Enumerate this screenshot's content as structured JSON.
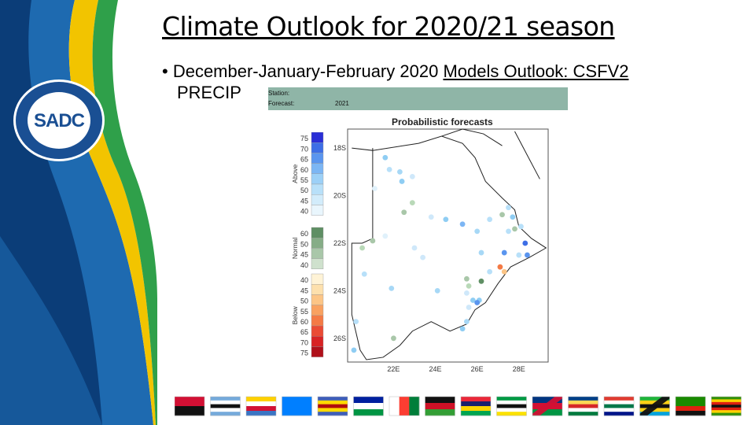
{
  "slide": {
    "title": "Climate Outlook for 2020/21 season",
    "bullet_prefix": "December-January-February 2020",
    "bullet_link": "Models Outlook: CSFV2",
    "bullet_line2": "PRECIP"
  },
  "logo": {
    "letters": "SADC",
    "ring_text": "SOUTHERN AFRICAN DEVELOPMENT COMMUNITY"
  },
  "forecast_header": {
    "station_label": "Station:",
    "forecast_label": "Forecast:",
    "forecast_value": "2021"
  },
  "forecast_title": "Probabilistic forecasts",
  "legend": {
    "above": {
      "label": "Above",
      "ticks": [
        "75",
        "70",
        "65",
        "60",
        "55",
        "50",
        "45",
        "40"
      ],
      "colors": [
        "#2a2fd6",
        "#3d6ee6",
        "#5a95ef",
        "#7cb6f4",
        "#9cd0f7",
        "#b8e0f9",
        "#d2ecfb",
        "#e9f6fd"
      ]
    },
    "normal": {
      "label": "Normal",
      "ticks": [
        "60",
        "50",
        "45",
        "40"
      ],
      "colors": [
        "#5f8f64",
        "#86ad87",
        "#a9c7a9",
        "#cfe1cd"
      ]
    },
    "below": {
      "label": "Below",
      "ticks": [
        "40",
        "45",
        "50",
        "55",
        "60",
        "65",
        "70",
        "75"
      ],
      "colors": [
        "#fff3d6",
        "#fde0ad",
        "#fcc586",
        "#f9a160",
        "#f47a45",
        "#ea4b34",
        "#d82324",
        "#b0101a"
      ]
    }
  },
  "map": {
    "lat_labels": [
      "18S",
      "20S",
      "22S",
      "24S",
      "26S"
    ],
    "lon_labels": [
      "22E",
      "24E",
      "26E",
      "28E"
    ],
    "stations": [
      {
        "lon": 21.6,
        "lat": -18.4,
        "c": "#8fcdf3"
      },
      {
        "lon": 21.8,
        "lat": -18.9,
        "c": "#b8e0f9"
      },
      {
        "lon": 22.3,
        "lat": -19.0,
        "c": "#a7d8f6"
      },
      {
        "lon": 22.4,
        "lat": -19.4,
        "c": "#8fcdf3"
      },
      {
        "lon": 22.9,
        "lat": -19.2,
        "c": "#cfe8fa"
      },
      {
        "lon": 21.1,
        "lat": -19.7,
        "c": "#e0f1fb"
      },
      {
        "lon": 22.9,
        "lat": -20.3,
        "c": "#b9d9b8"
      },
      {
        "lon": 22.5,
        "lat": -20.7,
        "c": "#a9c7a9"
      },
      {
        "lon": 23.8,
        "lat": -20.9,
        "c": "#cfe8fa"
      },
      {
        "lon": 24.5,
        "lat": -21.0,
        "c": "#8fcdf3"
      },
      {
        "lon": 25.3,
        "lat": -21.2,
        "c": "#7cb6f4"
      },
      {
        "lon": 26.6,
        "lat": -21.0,
        "c": "#b8e0f9"
      },
      {
        "lon": 27.2,
        "lat": -20.8,
        "c": "#a9c7a9"
      },
      {
        "lon": 27.5,
        "lat": -20.5,
        "c": "#b8e0f9"
      },
      {
        "lon": 27.7,
        "lat": -20.9,
        "c": "#8fcdf3"
      },
      {
        "lon": 27.8,
        "lat": -21.4,
        "c": "#a9c7a9"
      },
      {
        "lon": 28.1,
        "lat": -21.3,
        "c": "#b8e0f9"
      },
      {
        "lon": 26.0,
        "lat": -21.5,
        "c": "#a7d8f6"
      },
      {
        "lon": 21.0,
        "lat": -21.9,
        "c": "#a9c7a9"
      },
      {
        "lon": 20.5,
        "lat": -22.2,
        "c": "#b9d9b8"
      },
      {
        "lon": 21.6,
        "lat": -21.7,
        "c": "#e0f1fb"
      },
      {
        "lon": 23.0,
        "lat": -22.2,
        "c": "#cfe8fa"
      },
      {
        "lon": 23.4,
        "lat": -22.6,
        "c": "#cfe8fa"
      },
      {
        "lon": 26.2,
        "lat": -22.4,
        "c": "#a7d8f6"
      },
      {
        "lon": 27.3,
        "lat": -22.4,
        "c": "#5a95ef"
      },
      {
        "lon": 27.5,
        "lat": -21.5,
        "c": "#b8e0f9"
      },
      {
        "lon": 28.0,
        "lat": -22.5,
        "c": "#b8e0f9"
      },
      {
        "lon": 28.3,
        "lat": -22.0,
        "c": "#3d6ee6"
      },
      {
        "lon": 28.4,
        "lat": -22.5,
        "c": "#5a95ef"
      },
      {
        "lon": 27.1,
        "lat": -23.0,
        "c": "#f47a45"
      },
      {
        "lon": 27.3,
        "lat": -23.2,
        "c": "#fcc586"
      },
      {
        "lon": 26.6,
        "lat": -23.2,
        "c": "#b8e0f9"
      },
      {
        "lon": 26.2,
        "lat": -23.6,
        "c": "#5f8f64"
      },
      {
        "lon": 25.6,
        "lat": -23.8,
        "c": "#b9d9b8"
      },
      {
        "lon": 25.5,
        "lat": -23.5,
        "c": "#a9c7a9"
      },
      {
        "lon": 20.6,
        "lat": -23.3,
        "c": "#b8e0f9"
      },
      {
        "lon": 21.9,
        "lat": -23.9,
        "c": "#a7d8f6"
      },
      {
        "lon": 24.1,
        "lat": -24.0,
        "c": "#a7d8f6"
      },
      {
        "lon": 25.5,
        "lat": -24.1,
        "c": "#cfe8fa"
      },
      {
        "lon": 25.8,
        "lat": -24.4,
        "c": "#8fcdf3"
      },
      {
        "lon": 26.1,
        "lat": -24.4,
        "c": "#8fcdf3"
      },
      {
        "lon": 26.0,
        "lat": -24.5,
        "c": "#5a95ef"
      },
      {
        "lon": 25.6,
        "lat": -24.7,
        "c": "#cfe8fa"
      },
      {
        "lon": 25.5,
        "lat": -25.3,
        "c": "#a7d8f6"
      },
      {
        "lon": 25.3,
        "lat": -25.6,
        "c": "#8fcdf3"
      },
      {
        "lon": 20.2,
        "lat": -25.3,
        "c": "#b8e0f9"
      },
      {
        "lon": 22.0,
        "lat": -26.0,
        "c": "#a9c7a9"
      },
      {
        "lon": 20.1,
        "lat": -26.5,
        "c": "#8fcdf3"
      }
    ]
  },
  "flags": [
    {
      "name": "angola",
      "bands": [
        "#d21034",
        "#111111"
      ],
      "dir": "h"
    },
    {
      "name": "botswana",
      "bands": [
        "#75aadb",
        "#ffffff",
        "#111111",
        "#ffffff",
        "#75aadb"
      ],
      "dir": "h"
    },
    {
      "name": "comoros",
      "bands": [
        "#ffd100",
        "#ffffff",
        "#d21034",
        "#3a75c4"
      ],
      "dir": "h"
    },
    {
      "name": "drc",
      "bands": [
        "#007fff",
        "#007fff"
      ],
      "dir": "h"
    },
    {
      "name": "eswatini",
      "bands": [
        "#3e5eb9",
        "#ffd900",
        "#b10c0c",
        "#ffd900",
        "#3e5eb9"
      ],
      "dir": "h"
    },
    {
      "name": "lesotho",
      "bands": [
        "#00209f",
        "#ffffff",
        "#009543"
      ],
      "dir": "h"
    },
    {
      "name": "madagascar",
      "bands": [
        "#ffffff",
        "#fc3d32",
        "#007e3a"
      ],
      "dir": "v"
    },
    {
      "name": "malawi",
      "bands": [
        "#111111",
        "#ce1126",
        "#339e35"
      ],
      "dir": "h"
    },
    {
      "name": "mauritius",
      "bands": [
        "#ea2839",
        "#1a206d",
        "#ffd500",
        "#00a551"
      ],
      "dir": "h"
    },
    {
      "name": "mozambique",
      "bands": [
        "#009a44",
        "#ffffff",
        "#111111",
        "#ffffff",
        "#fce100"
      ],
      "dir": "h"
    },
    {
      "name": "namibia",
      "bands": [
        "#003580",
        "#d21034",
        "#009543"
      ],
      "dir": "d"
    },
    {
      "name": "seychelles",
      "bands": [
        "#003f87",
        "#fcd856",
        "#d62828",
        "#ffffff",
        "#007a3d"
      ],
      "dir": "h"
    },
    {
      "name": "south-africa",
      "bands": [
        "#e03c31",
        "#ffffff",
        "#007749",
        "#ffffff",
        "#001489"
      ],
      "dir": "h"
    },
    {
      "name": "tanzania",
      "bands": [
        "#1eb53a",
        "#fcd116",
        "#111111",
        "#fcd116",
        "#00a3dd"
      ],
      "dir": "d"
    },
    {
      "name": "zambia",
      "bands": [
        "#198a00",
        "#198a00",
        "#de2010",
        "#111111"
      ],
      "dir": "h"
    },
    {
      "name": "zimbabwe",
      "bands": [
        "#319208",
        "#ffd200",
        "#de2010",
        "#111111",
        "#de2010",
        "#ffd200",
        "#319208"
      ],
      "dir": "h"
    }
  ]
}
